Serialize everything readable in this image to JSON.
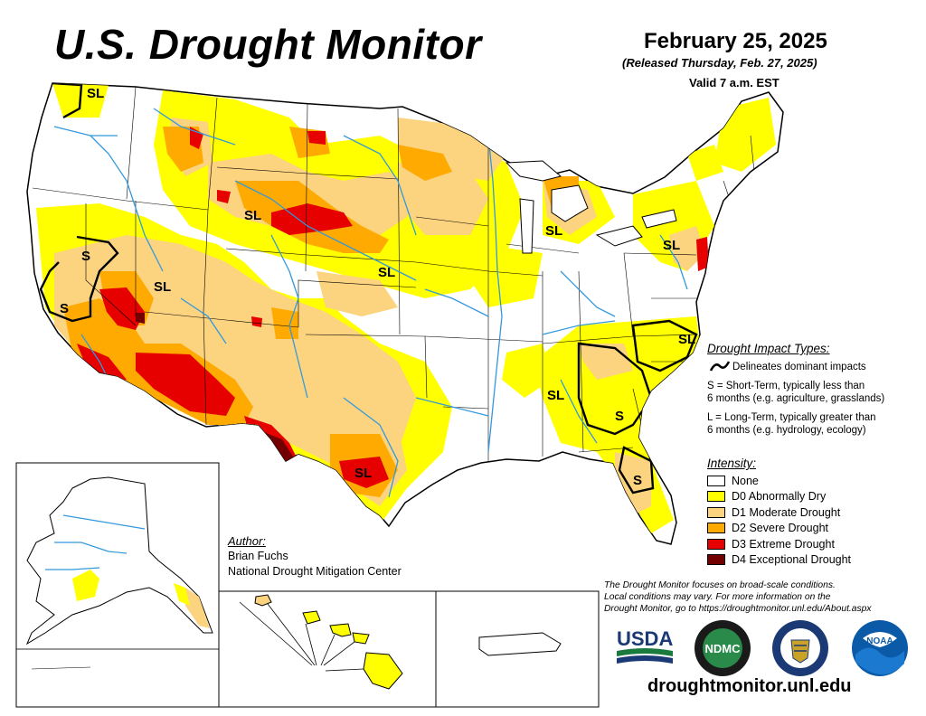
{
  "header": {
    "title": "U.S. Drought Monitor",
    "date": "February 25, 2025",
    "released": "(Released Thursday, Feb. 27, 2025)",
    "valid": "Valid 7 a.m. EST"
  },
  "map_labels": {
    "short_term": "S",
    "short_long": "SL"
  },
  "impact_legend": {
    "title": "Drought Impact Types:",
    "delineates": "Delineates dominant impacts",
    "s_line1": "S = Short-Term, typically less than",
    "s_line2": "6 months (e.g. agriculture, grasslands)",
    "l_line1": "L = Long-Term, typically greater than",
    "l_line2": "6 months (e.g. hydrology, ecology)"
  },
  "intensity_legend": {
    "title": "Intensity:",
    "items": [
      {
        "label": "None",
        "color": "#ffffff"
      },
      {
        "label": "D0 Abnormally Dry",
        "color": "#ffff00"
      },
      {
        "label": "D1 Moderate Drought",
        "color": "#fcd37f"
      },
      {
        "label": "D2 Severe Drought",
        "color": "#ffaa00"
      },
      {
        "label": "D3 Extreme Drought",
        "color": "#e60000"
      },
      {
        "label": "D4 Exceptional Drought",
        "color": "#730000"
      }
    ]
  },
  "author": {
    "title": "Author:",
    "name": "Brian Fuchs",
    "org": "National Drought Mitigation Center"
  },
  "disclaimer": {
    "line1": "The Drought Monitor focuses on broad-scale conditions.",
    "line2": "Local conditions may vary. For more information on the",
    "line3": "Drought Monitor, go to https://droughtmonitor.unl.edu/About.aspx"
  },
  "logos": {
    "usda": "USDA",
    "ndmc": "NDMC",
    "noaa": "NOAA"
  },
  "url": "droughtmonitor.unl.edu",
  "colors": {
    "water": "#3399dd",
    "d0": "#ffff00",
    "d1": "#fcd37f",
    "d2": "#ffaa00",
    "d3": "#e60000",
    "d4": "#730000"
  }
}
